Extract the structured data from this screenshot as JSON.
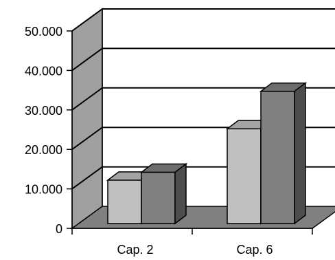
{
  "chart_data": {
    "type": "bar",
    "style": "3d-clustered-column",
    "categories": [
      "Cap. 2",
      "Cap. 6"
    ],
    "series": [
      {
        "values": [
          11000,
          24000
        ],
        "color": "#c0c0c0"
      },
      {
        "values": [
          13000,
          33500
        ],
        "color": "#808080"
      }
    ],
    "y_ticks": [
      "0",
      "10.000",
      "20.000",
      "30.000",
      "40.000",
      "50.000"
    ],
    "ylim": [
      0,
      50000
    ],
    "grid": true,
    "legend": "none",
    "colors": {
      "back_wall": "#ffffff",
      "side_wall": "#a0a0a0",
      "floor": "#808080",
      "line": "#000000"
    }
  }
}
